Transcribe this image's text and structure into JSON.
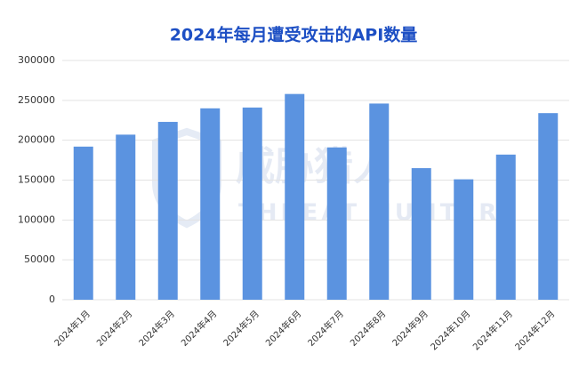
{
  "chart_data": {
    "type": "bar",
    "title": "2024年每月遭受攻击的API数量",
    "watermark": [
      "威胁猎人",
      "THREAT HUNTER"
    ],
    "categories": [
      "2024年1月",
      "2024年2月",
      "2024年3月",
      "2024年4月",
      "2024年5月",
      "2024年6月",
      "2024年7月",
      "2024年8月",
      "2024年9月",
      "2024年10月",
      "2024年11月",
      "2024年12月"
    ],
    "values": [
      192000,
      207000,
      223000,
      240000,
      241000,
      258000,
      191000,
      246000,
      165000,
      151000,
      182000,
      234000
    ],
    "color": "#5b93e0",
    "ylim": [
      0,
      300000
    ],
    "yticks": [
      0,
      50000,
      100000,
      150000,
      200000,
      250000,
      300000
    ],
    "grid": true
  }
}
